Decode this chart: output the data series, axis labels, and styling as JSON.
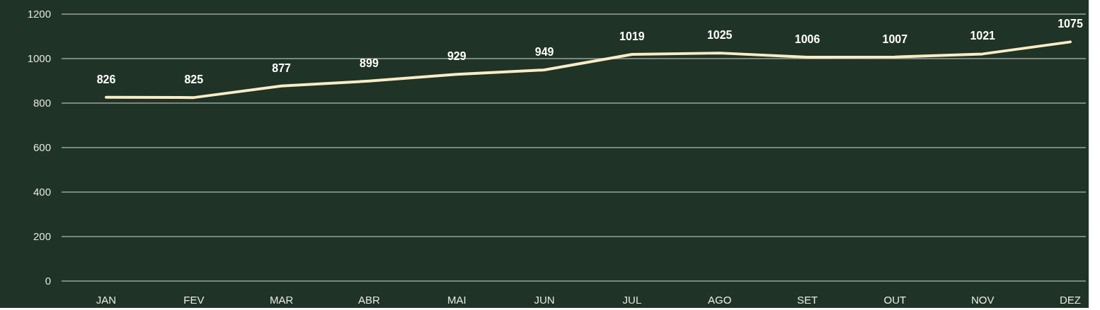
{
  "chart_data": {
    "type": "line",
    "categories": [
      "JAN",
      "FEV",
      "MAR",
      "ABR",
      "MAI",
      "JUN",
      "JUL",
      "AGO",
      "SET",
      "OUT",
      "NOV",
      "DEZ"
    ],
    "series": [
      {
        "color": "#fbecc6",
        "values": [
          826,
          825,
          877,
          899,
          929,
          949,
          1019,
          1025,
          1006,
          1007,
          1021,
          1075
        ]
      }
    ],
    "ylim": [
      0,
      1200
    ],
    "yticks": [
      0,
      200,
      400,
      600,
      800,
      1000,
      1200
    ],
    "grid": "y",
    "data_labels": true,
    "marker": "none",
    "line_style": "solid"
  }
}
